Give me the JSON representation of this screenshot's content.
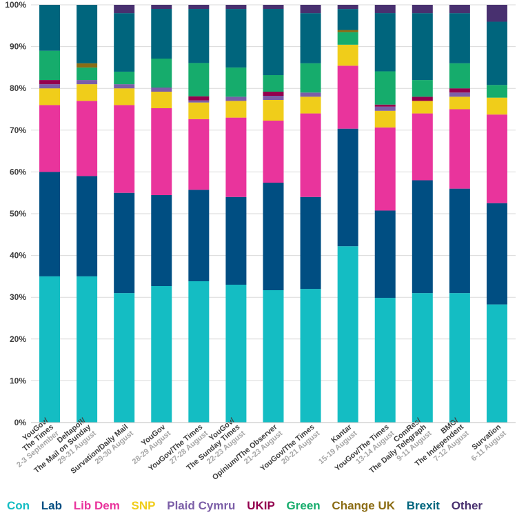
{
  "chart_data": {
    "type": "bar",
    "stacked": true,
    "ylim": [
      0,
      100
    ],
    "yticks": [
      "0%",
      "10%",
      "20%",
      "30%",
      "40%",
      "50%",
      "60%",
      "70%",
      "80%",
      "90%",
      "100%"
    ],
    "grid": true,
    "legend_position": "bottom",
    "categories": [
      {
        "pollster": "YouGov/ The Times",
        "date": "2-3 September"
      },
      {
        "pollster": "Deltapoll/ The Mail on Sunday",
        "date": "29-31 August"
      },
      {
        "pollster": "Survation/Daily Mail",
        "date": "29-30 August"
      },
      {
        "pollster": "YouGov",
        "date": "28-29 August"
      },
      {
        "pollster": "YouGov/The Times",
        "date": "27-28 August"
      },
      {
        "pollster": "YouGov/ The Sunday Times",
        "date": "22-23 August"
      },
      {
        "pollster": "Opinium/The Observer",
        "date": "21-23 August"
      },
      {
        "pollster": "YouGov/The Times",
        "date": "20-21 August"
      },
      {
        "pollster": "Kantar",
        "date": "15-19 August"
      },
      {
        "pollster": "YouGov/The Times",
        "date": "13-14 August"
      },
      {
        "pollster": "ComRes/ The Daily Telegraph",
        "date": "9-11 August"
      },
      {
        "pollster": "BMG/ The Independent",
        "date": "7-12 August"
      },
      {
        "pollster": "Survation",
        "date": "6-11 August"
      }
    ],
    "series": [
      {
        "name": "Con",
        "color": "#14BDC3",
        "values": [
          35,
          35,
          31,
          33,
          34,
          33,
          32,
          32,
          42,
          30,
          31,
          31,
          28
        ]
      },
      {
        "name": "Lab",
        "color": "#004E82",
        "values": [
          25,
          24,
          24,
          22,
          22,
          21,
          26,
          22,
          28,
          21,
          27,
          25,
          24
        ]
      },
      {
        "name": "Lib Dem",
        "color": "#E9349C",
        "values": [
          16,
          18,
          21,
          21,
          17,
          19,
          15,
          20,
          15,
          20,
          16,
          19,
          21
        ]
      },
      {
        "name": "SNP",
        "color": "#F0CD1A",
        "values": [
          4,
          4,
          4,
          4,
          4,
          4,
          5,
          4,
          5,
          4,
          3,
          3,
          4
        ]
      },
      {
        "name": "Plaid Cymru",
        "color": "#7B5EA7",
        "values": [
          1,
          1,
          1,
          1,
          0.5,
          1,
          1,
          1,
          0,
          1,
          0,
          1,
          0
        ]
      },
      {
        "name": "UKIP",
        "color": "#93004E",
        "values": [
          1,
          0,
          0,
          0,
          1,
          0,
          1,
          0,
          0,
          0.5,
          1,
          1,
          0
        ]
      },
      {
        "name": "Green",
        "color": "#16AC6C",
        "values": [
          7,
          3,
          3,
          7,
          8,
          7,
          4,
          7,
          3,
          8,
          4,
          6,
          3
        ]
      },
      {
        "name": "Change UK",
        "color": "#8B6C14",
        "values": [
          0,
          1,
          0,
          0,
          0,
          0,
          0,
          0,
          0.5,
          0,
          0,
          0,
          0
        ]
      },
      {
        "name": "Brexit",
        "color": "#00657D",
        "values": [
          11,
          14,
          14,
          12,
          13,
          14,
          16,
          12,
          5,
          14,
          16,
          12,
          15
        ]
      },
      {
        "name": "Other",
        "color": "#48306F",
        "values": [
          0,
          0,
          2,
          1,
          1,
          1,
          1,
          2,
          1,
          2,
          2,
          2,
          4
        ]
      }
    ]
  }
}
